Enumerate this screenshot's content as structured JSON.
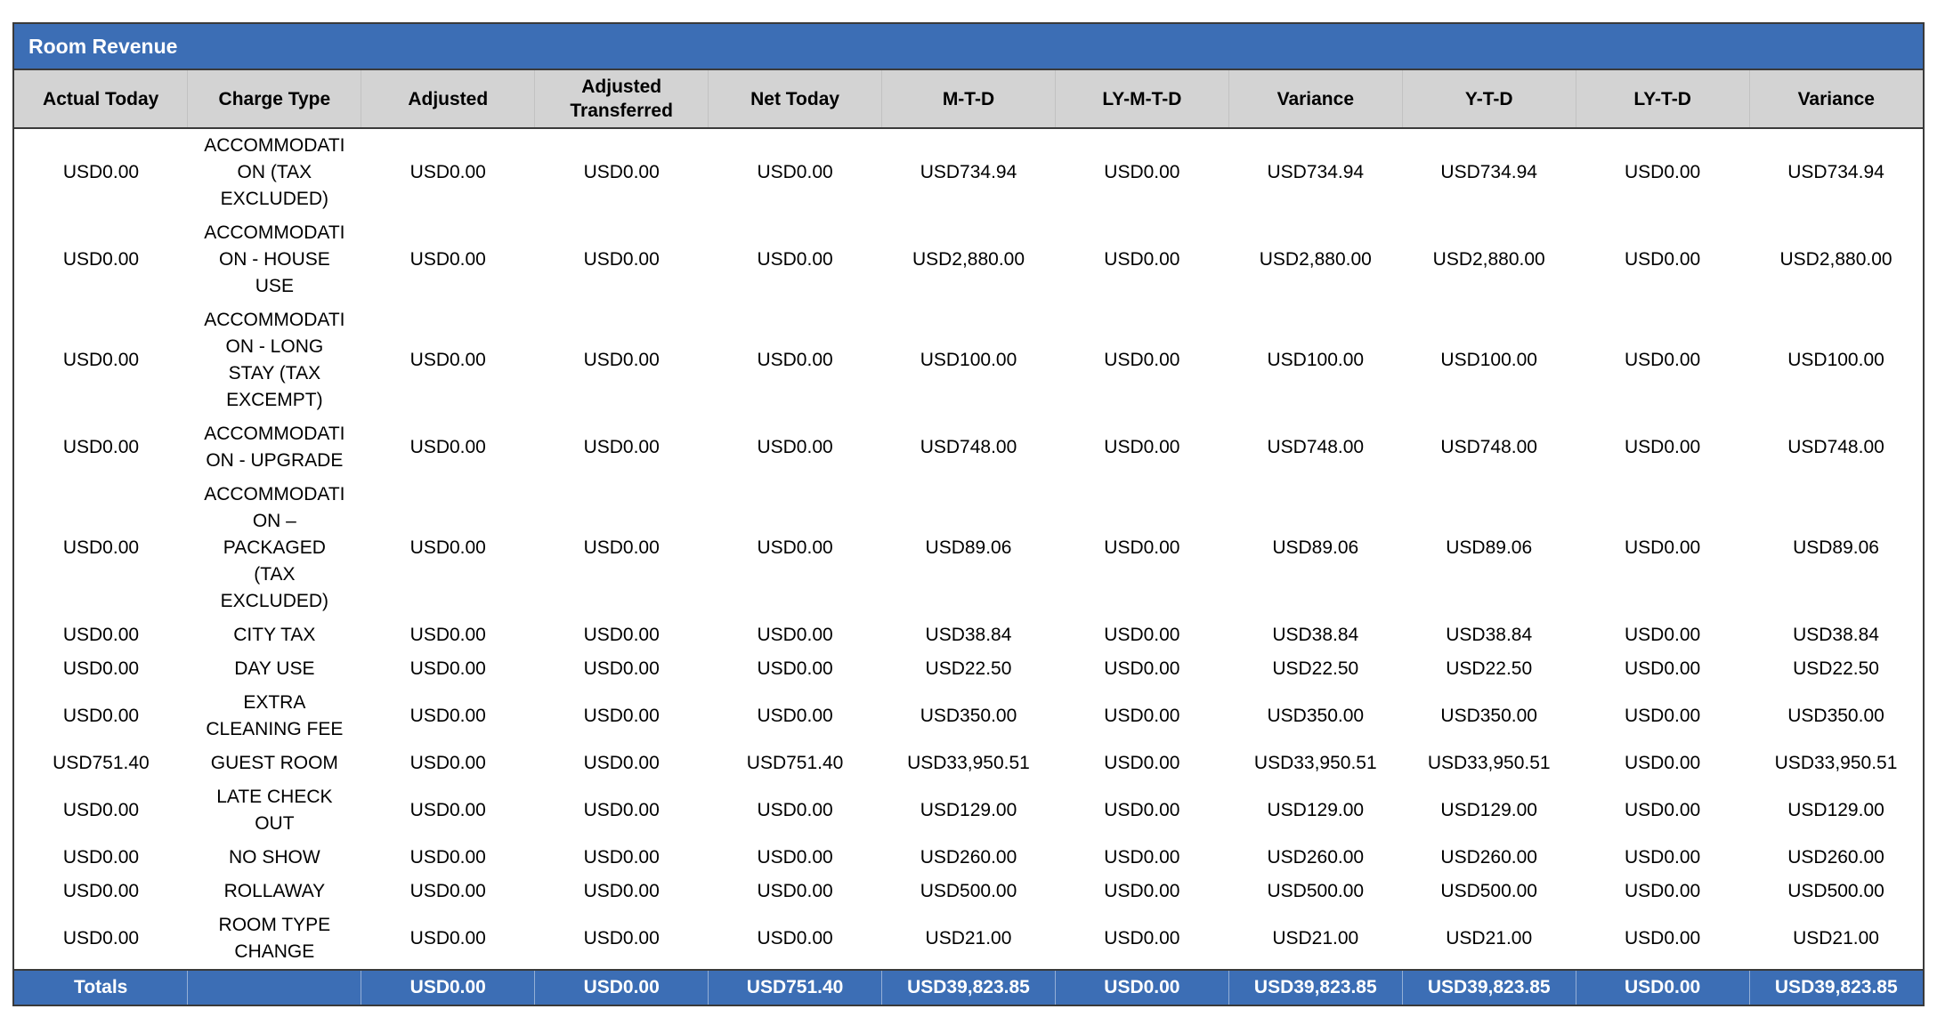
{
  "colors": {
    "header_blue": "#3C6EB5",
    "header_gray": "#D3D3D3",
    "border_dark": "#3A3A3A",
    "totals_text": "#FFFFFF"
  },
  "section": {
    "title": "Room Revenue"
  },
  "table": {
    "columns": [
      "Actual Today",
      "Charge Type",
      "Adjusted",
      "Adjusted Transferred",
      "Net Today",
      "M-T-D",
      "LY-M-T-D",
      "Variance",
      "Y-T-D",
      "LY-T-D",
      "Variance"
    ],
    "rows": [
      [
        "USD0.00",
        "ACCOMMODATION (TAX EXCLUDED)",
        "USD0.00",
        "USD0.00",
        "USD0.00",
        "USD734.94",
        "USD0.00",
        "USD734.94",
        "USD734.94",
        "USD0.00",
        "USD734.94"
      ],
      [
        "USD0.00",
        "ACCOMMODATION - HOUSE USE",
        "USD0.00",
        "USD0.00",
        "USD0.00",
        "USD2,880.00",
        "USD0.00",
        "USD2,880.00",
        "USD2,880.00",
        "USD0.00",
        "USD2,880.00"
      ],
      [
        "USD0.00",
        "ACCOMMODATION - LONG STAY (TAX EXCEMPT)",
        "USD0.00",
        "USD0.00",
        "USD0.00",
        "USD100.00",
        "USD0.00",
        "USD100.00",
        "USD100.00",
        "USD0.00",
        "USD100.00"
      ],
      [
        "USD0.00",
        "ACCOMMODATION - UPGRADE",
        "USD0.00",
        "USD0.00",
        "USD0.00",
        "USD748.00",
        "USD0.00",
        "USD748.00",
        "USD748.00",
        "USD0.00",
        "USD748.00"
      ],
      [
        "USD0.00",
        "ACCOMMODATION – PACKAGED (TAX EXCLUDED)",
        "USD0.00",
        "USD0.00",
        "USD0.00",
        "USD89.06",
        "USD0.00",
        "USD89.06",
        "USD89.06",
        "USD0.00",
        "USD89.06"
      ],
      [
        "USD0.00",
        "CITY TAX",
        "USD0.00",
        "USD0.00",
        "USD0.00",
        "USD38.84",
        "USD0.00",
        "USD38.84",
        "USD38.84",
        "USD0.00",
        "USD38.84"
      ],
      [
        "USD0.00",
        "DAY USE",
        "USD0.00",
        "USD0.00",
        "USD0.00",
        "USD22.50",
        "USD0.00",
        "USD22.50",
        "USD22.50",
        "USD0.00",
        "USD22.50"
      ],
      [
        "USD0.00",
        "EXTRA CLEANING FEE",
        "USD0.00",
        "USD0.00",
        "USD0.00",
        "USD350.00",
        "USD0.00",
        "USD350.00",
        "USD350.00",
        "USD0.00",
        "USD350.00"
      ],
      [
        "USD751.40",
        "GUEST ROOM",
        "USD0.00",
        "USD0.00",
        "USD751.40",
        "USD33,950.51",
        "USD0.00",
        "USD33,950.51",
        "USD33,950.51",
        "USD0.00",
        "USD33,950.51"
      ],
      [
        "USD0.00",
        "LATE CHECK OUT",
        "USD0.00",
        "USD0.00",
        "USD0.00",
        "USD129.00",
        "USD0.00",
        "USD129.00",
        "USD129.00",
        "USD0.00",
        "USD129.00"
      ],
      [
        "USD0.00",
        "NO SHOW",
        "USD0.00",
        "USD0.00",
        "USD0.00",
        "USD260.00",
        "USD0.00",
        "USD260.00",
        "USD260.00",
        "USD0.00",
        "USD260.00"
      ],
      [
        "USD0.00",
        "ROLLAWAY",
        "USD0.00",
        "USD0.00",
        "USD0.00",
        "USD500.00",
        "USD0.00",
        "USD500.00",
        "USD500.00",
        "USD0.00",
        "USD500.00"
      ],
      [
        "USD0.00",
        "ROOM TYPE CHANGE",
        "USD0.00",
        "USD0.00",
        "USD0.00",
        "USD21.00",
        "USD0.00",
        "USD21.00",
        "USD21.00",
        "USD0.00",
        "USD21.00"
      ]
    ],
    "totals": [
      "Totals",
      "",
      "USD0.00",
      "USD0.00",
      "USD751.40",
      "USD39,823.85",
      "USD0.00",
      "USD39,823.85",
      "USD39,823.85",
      "USD0.00",
      "USD39,823.85"
    ]
  }
}
